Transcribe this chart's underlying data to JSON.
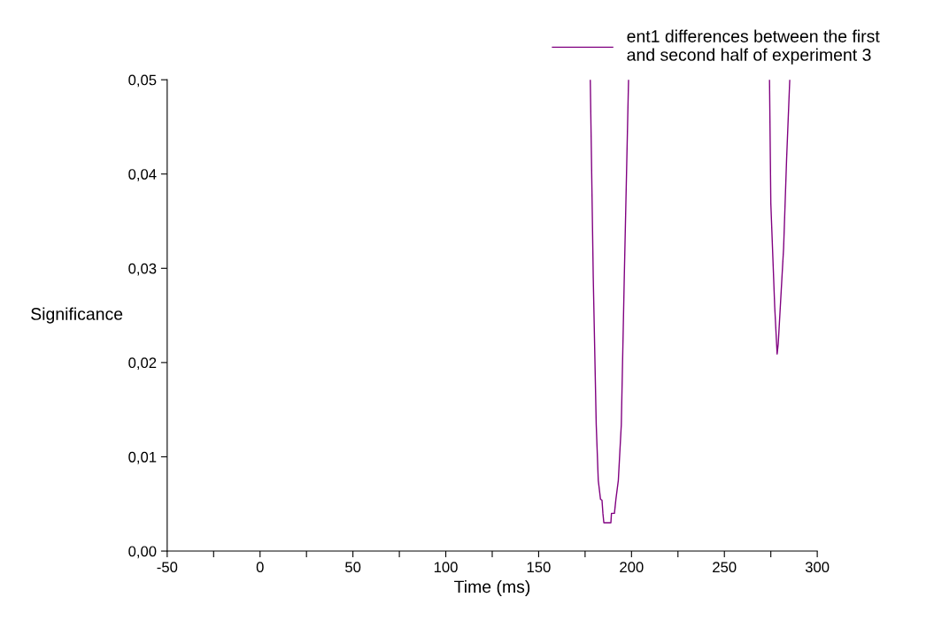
{
  "chart_data": {
    "type": "line",
    "xlabel": "Time (ms)",
    "ylabel": "Significance",
    "x": [
      177.8,
      179.4,
      181.0,
      182.1,
      183.3,
      184.1,
      184.6,
      185.1,
      188.9,
      189.2,
      190.8,
      191.6,
      192.9,
      194.5,
      196.1,
      198.4,
      null,
      274.3,
      275.0,
      277.1,
      278.4,
      279.0,
      281.9,
      283.5,
      285.2
    ],
    "series": [
      {
        "name": "ent1 differences between the first and second half of experiment 3",
        "color": "#800080",
        "values": [
          0.05,
          0.029,
          0.0134,
          0.0075,
          0.0055,
          0.0054,
          0.004,
          0.003,
          0.003,
          0.004,
          0.004,
          0.0055,
          0.0075,
          0.0134,
          0.029,
          0.05,
          null,
          0.05,
          0.0369,
          0.0259,
          0.0209,
          0.022,
          0.0322,
          0.0416,
          0.05
        ]
      }
    ],
    "xlim": [
      -50,
      300
    ],
    "xticks": [
      -50,
      {
        "value": -25,
        "label": null
      },
      0,
      {
        "value": 25,
        "label": null
      },
      50,
      {
        "value": 75,
        "label": null
      },
      100,
      {
        "value": 125,
        "label": null
      },
      150,
      {
        "value": 175,
        "label": null
      },
      200,
      {
        "value": 225,
        "label": null
      },
      250,
      {
        "value": 275,
        "label": null
      },
      300
    ],
    "ylim": [
      0,
      0.05
    ],
    "yticks": [
      {
        "value": 0,
        "label": "0,00"
      },
      {
        "value": 0.01,
        "label": "0,01"
      },
      {
        "value": 0.02,
        "label": "0,02"
      },
      {
        "value": 0.03,
        "label": "0,03"
      },
      {
        "value": 0.04,
        "label": "0,04"
      },
      {
        "value": 0.05,
        "label": "0,05"
      }
    ],
    "legend": "top right",
    "grid": false,
    "marker": "none",
    "line_style": "solid"
  }
}
